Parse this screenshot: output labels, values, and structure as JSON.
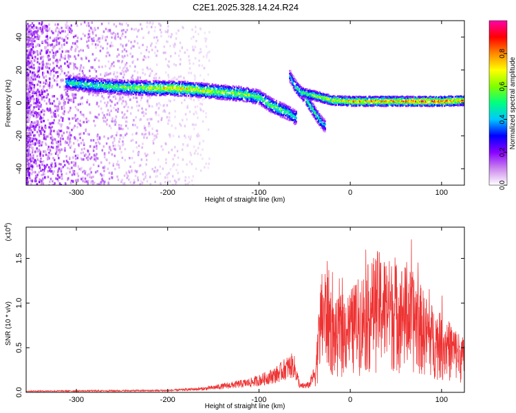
{
  "title": "C2E1.2025.328.14.24.R24",
  "chart_data": [
    {
      "type": "heatmap",
      "xlabel": "Height of straight line (km)",
      "ylabel": "Frequency (Hz)",
      "xlim": [
        -355,
        125
      ],
      "ylim": [
        -50,
        50
      ],
      "xticks": [
        -300,
        -200,
        -100,
        0,
        100
      ],
      "xtick_labels": [
        "-300",
        "-200",
        "-100",
        "0",
        "100"
      ],
      "yticks": [
        -40,
        -20,
        0,
        20,
        40
      ],
      "ytick_labels": [
        "-40",
        "-20",
        "0",
        "20",
        "40"
      ],
      "grid": false,
      "colorbar": {
        "label": "Normalized spectral amplitude",
        "range": [
          0,
          1
        ],
        "ticks": [
          0.0,
          0.2,
          0.4,
          0.6,
          0.8
        ],
        "tick_labels": [
          "0.0",
          "0.2",
          "0.4",
          "0.6",
          "0.8"
        ],
        "colormap": [
          "#ffffff",
          "#cc88ee",
          "#8800ff",
          "#0000ff",
          "#00c8ff",
          "#00ff80",
          "#80ff00",
          "#ffff00",
          "#ff8800",
          "#ff0000",
          "#ff00aa"
        ]
      },
      "main_trace": [
        {
          "x": -310,
          "freq": 13,
          "amp": 0.5
        },
        {
          "x": -280,
          "freq": 11,
          "amp": 0.55
        },
        {
          "x": -250,
          "freq": 10,
          "amp": 0.6
        },
        {
          "x": -220,
          "freq": 9.5,
          "amp": 0.7
        },
        {
          "x": -200,
          "freq": 9.5,
          "amp": 0.75
        },
        {
          "x": -180,
          "freq": 9,
          "amp": 0.75
        },
        {
          "x": -160,
          "freq": 8,
          "amp": 0.7
        },
        {
          "x": -140,
          "freq": 7,
          "amp": 0.65
        },
        {
          "x": -120,
          "freq": 6,
          "amp": 0.65
        },
        {
          "x": -100,
          "freq": 4,
          "amp": 0.6
        },
        {
          "x": -90,
          "freq": 0,
          "amp": 0.6
        },
        {
          "x": -80,
          "freq": -3,
          "amp": 0.6
        },
        {
          "x": -70,
          "freq": -5,
          "amp": 0.55
        },
        {
          "x": -62,
          "freq": -8,
          "amp": 0.5
        }
      ],
      "branch_trace": [
        {
          "x": -67,
          "freq": 17,
          "amp": 0.4
        },
        {
          "x": -60,
          "freq": 10,
          "amp": 0.55
        },
        {
          "x": -50,
          "freq": 4,
          "amp": 0.6
        },
        {
          "x": -40,
          "freq": -5,
          "amp": 0.55
        },
        {
          "x": -30,
          "freq": -13,
          "amp": 0.45
        }
      ],
      "right_trace": [
        {
          "x": -55,
          "freq": 7,
          "amp": 0.6
        },
        {
          "x": -40,
          "freq": 5,
          "amp": 0.65
        },
        {
          "x": -20,
          "freq": 2,
          "amp": 0.75
        },
        {
          "x": 0,
          "freq": 1.5,
          "amp": 0.8
        },
        {
          "x": 25,
          "freq": 1.5,
          "amp": 0.85
        },
        {
          "x": 50,
          "freq": 1.5,
          "amp": 0.85
        },
        {
          "x": 75,
          "freq": 1.5,
          "amp": 0.9
        },
        {
          "x": 100,
          "freq": 1.5,
          "amp": 0.9
        },
        {
          "x": 125,
          "freq": 2,
          "amp": 0.85
        }
      ]
    },
    {
      "type": "line",
      "xlabel": "Height of straight line (km)",
      "ylabel": "SNR (10 * v/v)",
      "y_multiplier_label": "(x10",
      "y_multiplier_exp": "4",
      "y_multiplier_close": ")",
      "xlim": [
        -355,
        125
      ],
      "ylim": [
        0,
        1.85
      ],
      "xticks": [
        -300,
        -200,
        -100,
        0,
        100
      ],
      "xtick_labels": [
        "-300",
        "-200",
        "-100",
        "0",
        "100"
      ],
      "yticks": [
        0.0,
        0.5,
        1.0,
        1.5
      ],
      "ytick_labels": [
        "0.0",
        "0.5",
        "1.0",
        "1.5"
      ],
      "line_color": "#ee3333",
      "series_envelope": [
        {
          "x": -355,
          "y": 0.02
        },
        {
          "x": -200,
          "y": 0.03
        },
        {
          "x": -160,
          "y": 0.06
        },
        {
          "x": -130,
          "y": 0.12
        },
        {
          "x": -110,
          "y": 0.16
        },
        {
          "x": -95,
          "y": 0.22
        },
        {
          "x": -80,
          "y": 0.3
        },
        {
          "x": -70,
          "y": 0.4
        },
        {
          "x": -62,
          "y": 0.45
        },
        {
          "x": -55,
          "y": 0.1
        },
        {
          "x": -45,
          "y": 0.12
        },
        {
          "x": -38,
          "y": 0.35
        },
        {
          "x": -32,
          "y": 1.2
        },
        {
          "x": -25,
          "y": 1.35
        },
        {
          "x": -18,
          "y": 0.9
        },
        {
          "x": -10,
          "y": 1.0
        },
        {
          "x": 0,
          "y": 1.05
        },
        {
          "x": 15,
          "y": 1.25
        },
        {
          "x": 30,
          "y": 1.45
        },
        {
          "x": 45,
          "y": 1.35
        },
        {
          "x": 60,
          "y": 1.3
        },
        {
          "x": 72,
          "y": 1.2
        },
        {
          "x": 85,
          "y": 0.95
        },
        {
          "x": 100,
          "y": 0.8
        },
        {
          "x": 112,
          "y": 0.7
        },
        {
          "x": 125,
          "y": 0.55
        }
      ]
    }
  ]
}
